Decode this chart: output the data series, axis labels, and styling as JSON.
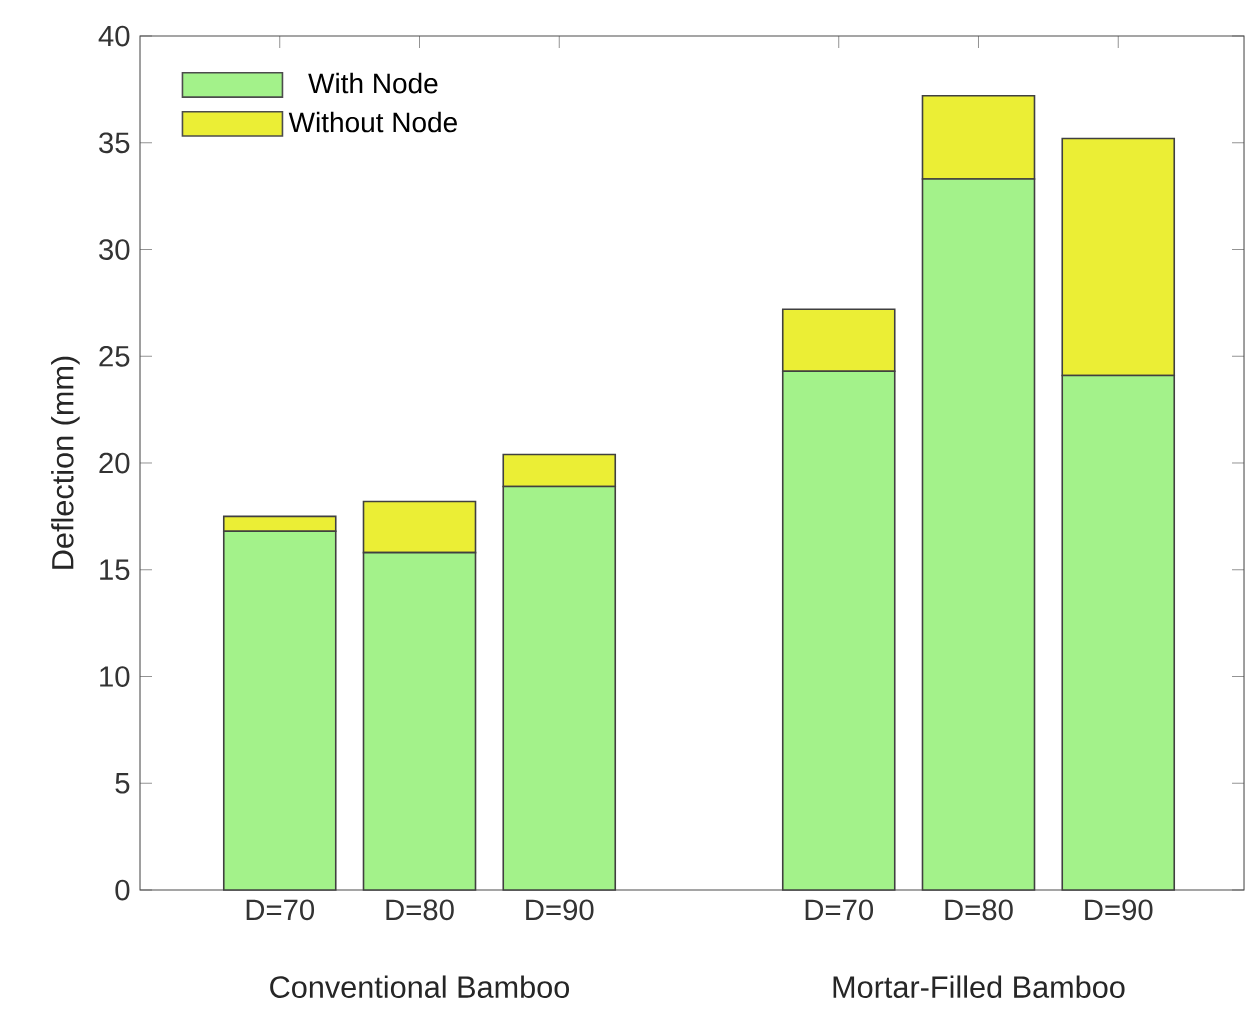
{
  "chart_data": {
    "type": "bar",
    "stacked": true,
    "ylabel": "Deflection (mm)",
    "categories": [
      "D=70",
      "D=80",
      "D=90",
      null,
      "D=70",
      "D=80",
      "D=90"
    ],
    "series": [
      {
        "name": "With Node",
        "color": "#a3f28a",
        "values": [
          16.8,
          15.8,
          18.9,
          null,
          24.3,
          33.3,
          24.1
        ]
      },
      {
        "name": "Without Node",
        "color": "#ebee35",
        "values": [
          0.7,
          2.4,
          1.5,
          null,
          2.9,
          3.9,
          11.1
        ]
      }
    ],
    "ylim": [
      0,
      40
    ],
    "yticks": [
      0,
      5,
      10,
      15,
      20,
      25,
      30,
      35,
      40
    ],
    "legend": "top left",
    "annotations": [
      "Conventional Bamboo",
      "Mortar-Filled Bamboo"
    ]
  }
}
